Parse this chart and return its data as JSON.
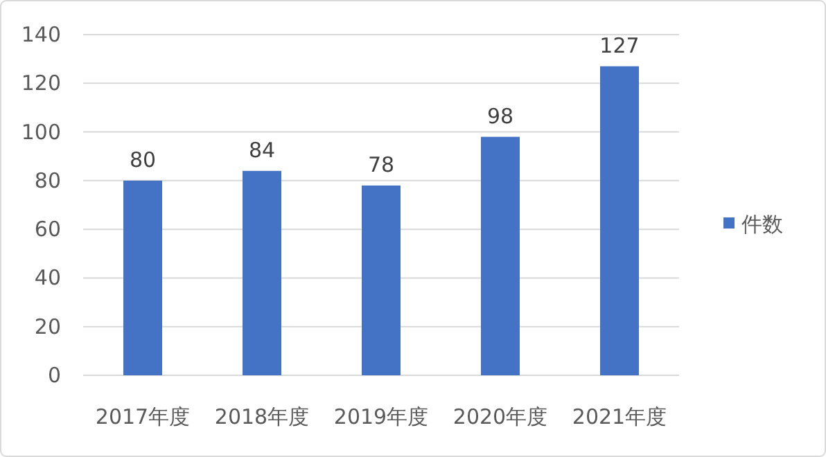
{
  "chart_data": {
    "type": "bar",
    "categories": [
      "2017年度",
      "2018年度",
      "2019年度",
      "2020年度",
      "2021年度"
    ],
    "series": [
      {
        "name": "件数",
        "color": "#4472c4",
        "values": [
          80,
          84,
          78,
          98,
          127
        ]
      }
    ],
    "ylim": [
      0,
      140
    ],
    "yticks": [
      0,
      20,
      40,
      60,
      80,
      100,
      120,
      140
    ],
    "grid": "y",
    "legend": "right",
    "data_labels": true
  }
}
